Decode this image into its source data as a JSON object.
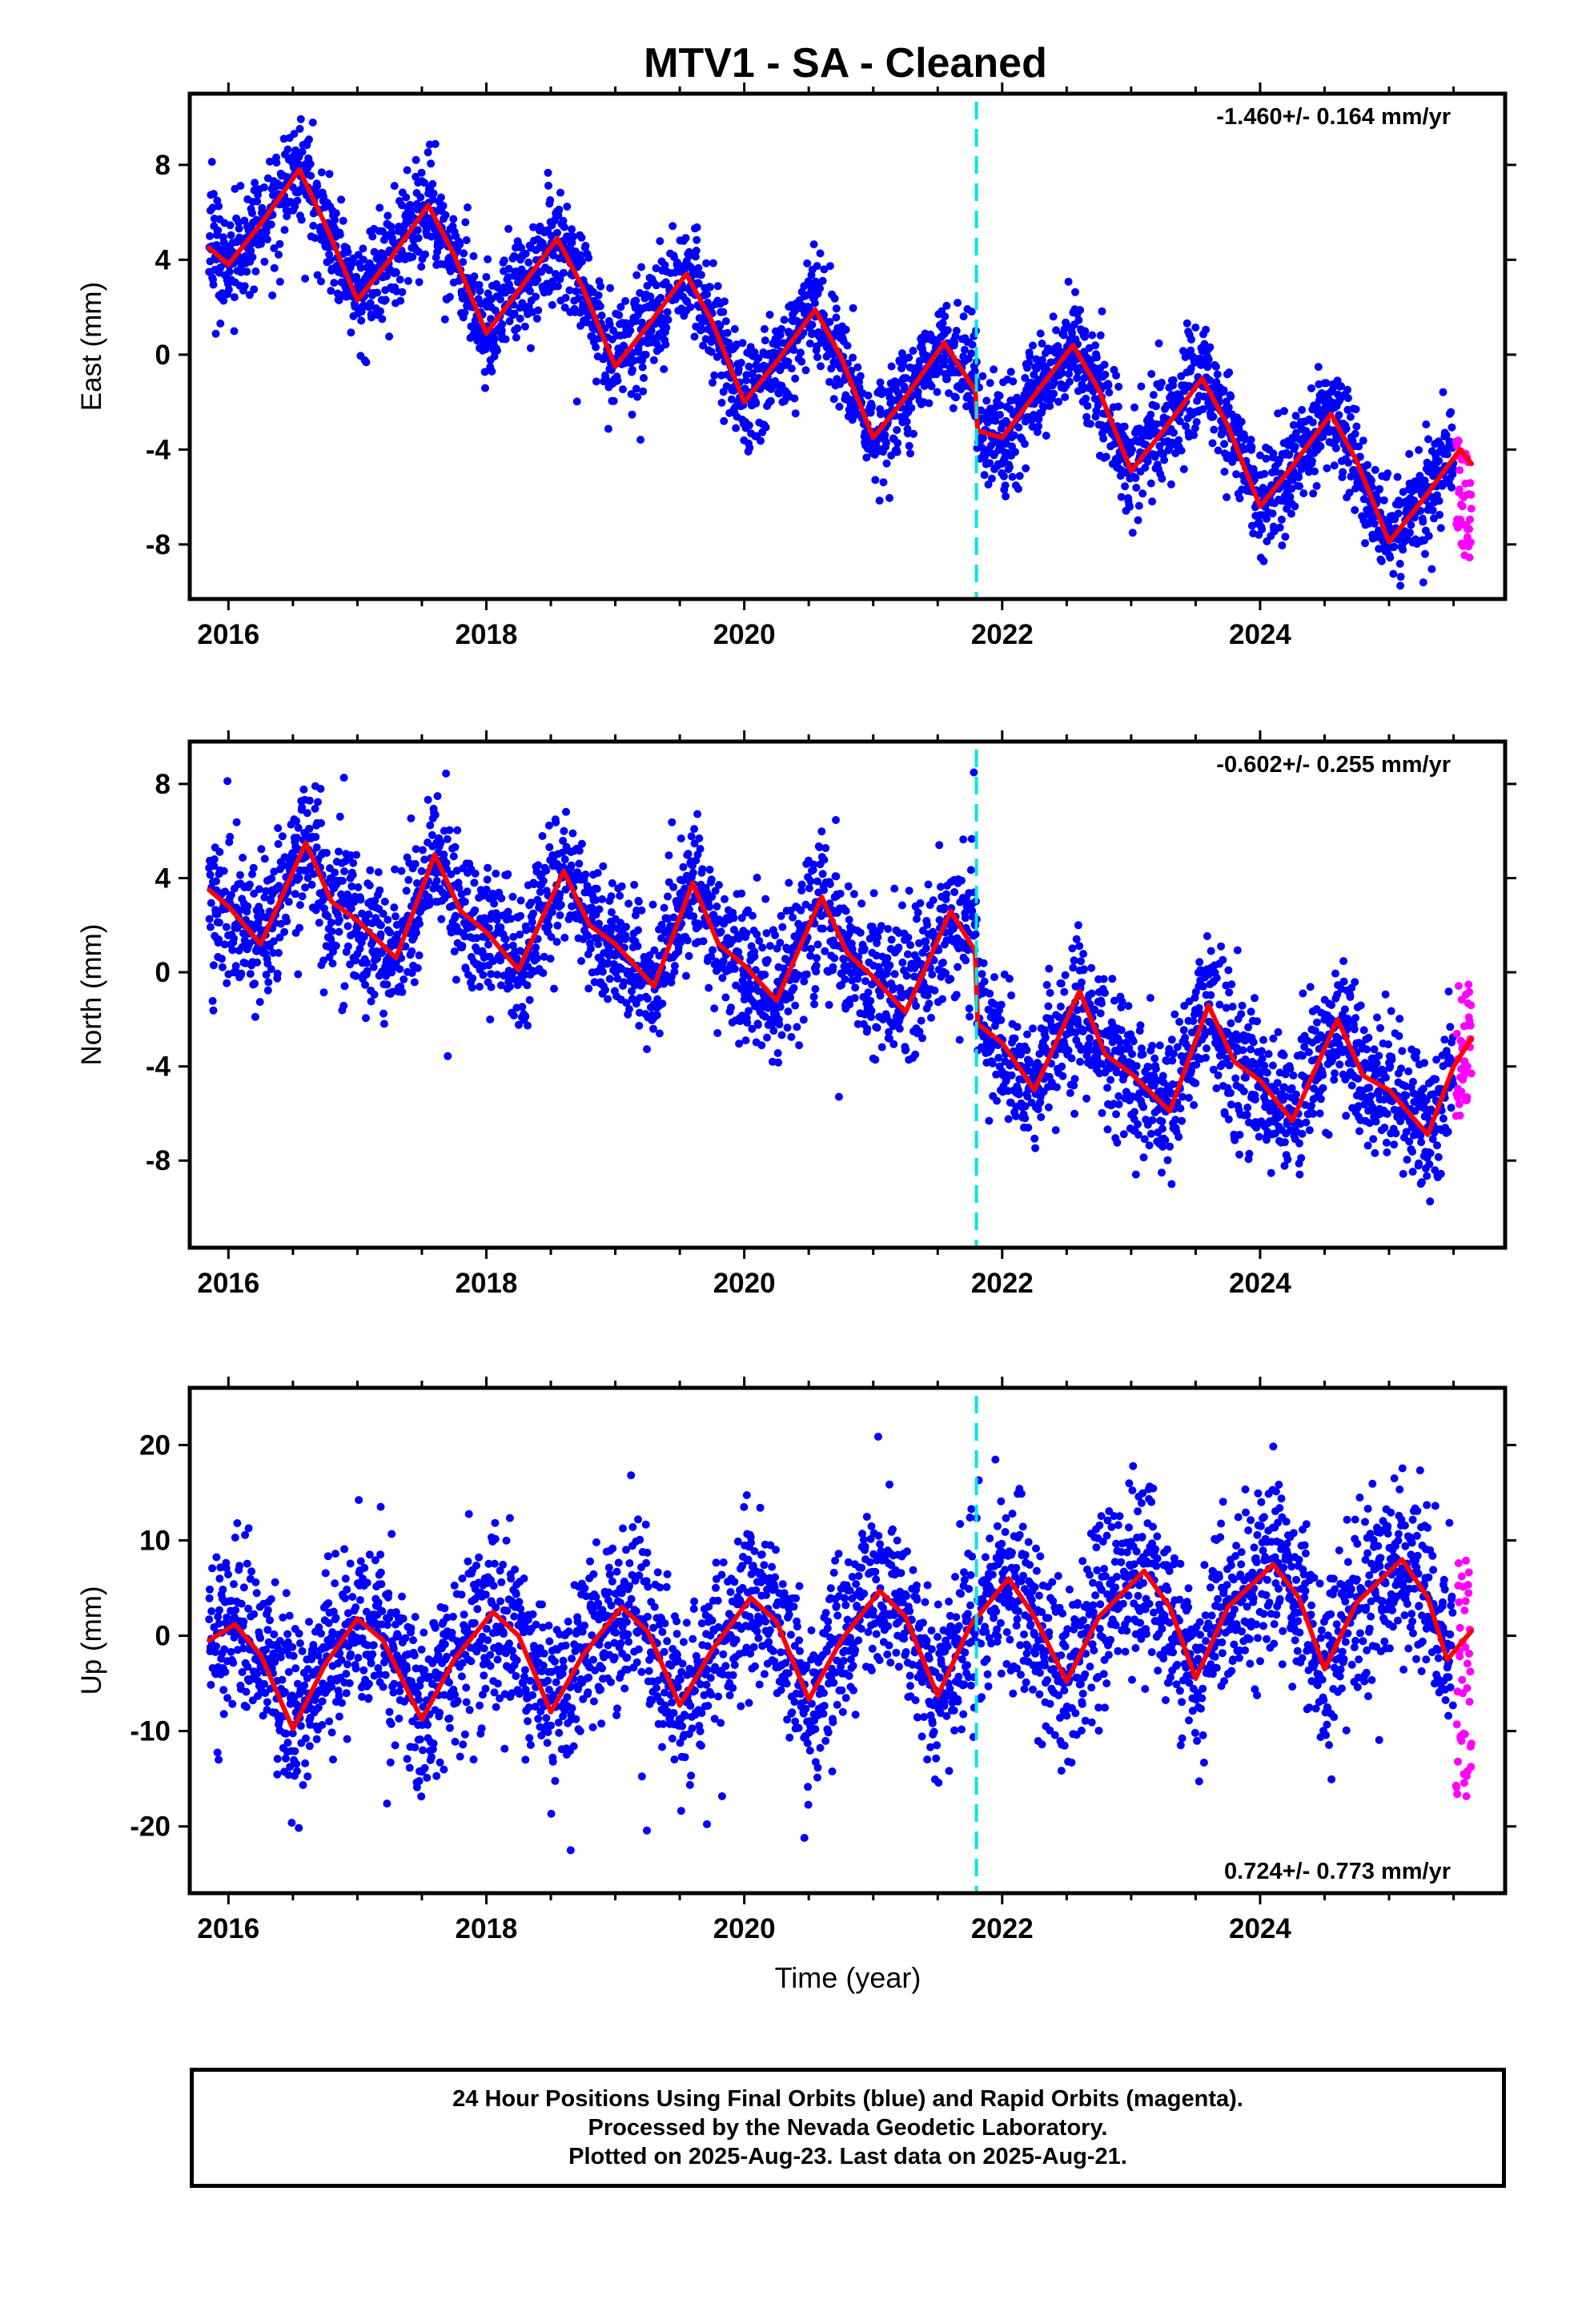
{
  "title": "MTV1  - SA - Cleaned",
  "colors": {
    "final_orbits": "#0000ff",
    "rapid_orbits": "#ff00ff",
    "model_fit": "#ff0000",
    "offset_marker": "#00e5e5"
  },
  "offset_marker_year": 2021.8,
  "xlabel": "Time (year)",
  "footer": {
    "line1": "24 Hour Positions Using Final Orbits (blue) and Rapid Orbits (magenta).",
    "line2": "Processed by the Nevada Geodetic Laboratory.",
    "line3": "Plotted on 2025-Aug-23. Last data on 2025-Aug-21."
  },
  "chart_data": [
    {
      "type": "scatter",
      "component": "east",
      "ylabel": "East (mm)",
      "rate_label": "-1.460+/- 0.164 mm/yr",
      "rate_position": "top-right",
      "xlim": [
        2015.7,
        2025.9
      ],
      "ylim": [
        -10.3,
        11.0
      ],
      "xticks": [
        2016,
        2018,
        2020,
        2022,
        2024
      ],
      "yticks": [
        8,
        4,
        0,
        -4,
        -8
      ],
      "series": [
        {
          "style": "points",
          "color": "#0000ff",
          "x_range": [
            2015.85,
            2025.5
          ],
          "scatter_sd": 1.1,
          "jump_year": 2021.8,
          "jump": -1.2
        },
        {
          "style": "points",
          "color": "#ff00ff",
          "x_range": [
            2025.52,
            2025.64
          ],
          "y_range": [
            -8.6,
            -3.4
          ]
        },
        {
          "style": "line",
          "color": "#ff0000",
          "x": [
            2015.85,
            2016.0,
            2016.25,
            2016.55,
            2016.75,
            2017.0,
            2017.25,
            2017.55,
            2017.75,
            2018.0,
            2018.25,
            2018.55,
            2018.75,
            2019.0,
            2019.25,
            2019.55,
            2019.75,
            2020.0,
            2020.25,
            2020.55,
            2020.75,
            2021.0,
            2021.25,
            2021.55,
            2021.79,
            2021.81,
            2022.0,
            2022.25,
            2022.55,
            2022.75,
            2023.0,
            2023.25,
            2023.55,
            2023.75,
            2024.0,
            2024.25,
            2024.55,
            2024.75,
            2025.0,
            2025.25,
            2025.55,
            2025.64
          ],
          "y": [
            4.5,
            3.8,
            5.5,
            7.8,
            5.5,
            2.3,
            4.0,
            6.3,
            4.2,
            0.9,
            2.7,
            4.9,
            2.8,
            -0.5,
            1.2,
            3.4,
            1.4,
            -2.0,
            -0.3,
            1.9,
            -0.1,
            -3.5,
            -1.8,
            0.5,
            -1.5,
            -3.2,
            -3.5,
            -1.7,
            0.4,
            -1.5,
            -4.9,
            -3.2,
            -1.0,
            -3.0,
            -6.4,
            -4.7,
            -2.5,
            -4.5,
            -7.9,
            -6.2,
            -4.0,
            -4.6
          ]
        }
      ]
    },
    {
      "type": "scatter",
      "component": "north",
      "ylabel": "North (mm)",
      "rate_label": "-0.602+/- 0.255 mm/yr",
      "rate_position": "top-right",
      "xlim": [
        2015.7,
        2025.9
      ],
      "ylim": [
        -11.7,
        9.8
      ],
      "xticks": [
        2016,
        2018,
        2020,
        2022,
        2024
      ],
      "yticks": [
        8,
        4,
        0,
        -4,
        -8
      ],
      "series": [
        {
          "style": "points",
          "color": "#0000ff",
          "x_range": [
            2015.85,
            2025.5
          ],
          "scatter_sd": 1.5,
          "jump_year": 2021.8,
          "jump": -2.3
        },
        {
          "style": "points",
          "color": "#ff00ff",
          "x_range": [
            2025.52,
            2025.64
          ],
          "y_range": [
            -6.1,
            -0.4
          ]
        },
        {
          "style": "line",
          "color": "#ff0000",
          "x": [
            2015.85,
            2016.0,
            2016.25,
            2016.6,
            2016.8,
            2017.0,
            2017.3,
            2017.6,
            2017.8,
            2018.0,
            2018.25,
            2018.6,
            2018.8,
            2019.0,
            2019.3,
            2019.6,
            2019.8,
            2020.0,
            2020.25,
            2020.6,
            2020.8,
            2021.0,
            2021.25,
            2021.6,
            2021.79,
            2021.81,
            2022.0,
            2022.25,
            2022.6,
            2022.8,
            2023.0,
            2023.3,
            2023.6,
            2023.8,
            2024.0,
            2024.25,
            2024.6,
            2024.8,
            2025.0,
            2025.3,
            2025.5,
            2025.64
          ],
          "y": [
            3.5,
            2.8,
            1.2,
            5.5,
            3.0,
            2.2,
            0.6,
            5.0,
            2.6,
            1.7,
            0.1,
            4.3,
            2.0,
            1.2,
            -0.6,
            3.8,
            1.2,
            0.3,
            -1.2,
            3.2,
            0.8,
            -0.2,
            -1.7,
            2.6,
            0.9,
            -2.2,
            -3.0,
            -5.0,
            -0.8,
            -3.5,
            -4.3,
            -5.9,
            -1.4,
            -3.8,
            -4.6,
            -6.3,
            -2.0,
            -4.4,
            -5.0,
            -6.9,
            -4.0,
            -2.8
          ]
        }
      ]
    },
    {
      "type": "scatter",
      "component": "up",
      "ylabel": "Up (mm)",
      "rate_label": "0.724+/- 0.773 mm/yr",
      "rate_position": "bottom-right",
      "xlim": [
        2015.7,
        2025.9
      ],
      "ylim": [
        -27.0,
        26.0
      ],
      "xticks": [
        2016,
        2018,
        2020,
        2022,
        2024
      ],
      "yticks": [
        20,
        10,
        0,
        -10,
        -20
      ],
      "series": [
        {
          "style": "points",
          "color": "#0000ff",
          "x_range": [
            2015.85,
            2025.5
          ],
          "scatter_sd": 4.5,
          "jump_year": 2021.8,
          "jump": 0
        },
        {
          "style": "points",
          "color": "#ff00ff",
          "x_range": [
            2025.52,
            2025.64
          ],
          "y_range": [
            -17.0,
            8.0
          ]
        },
        {
          "style": "line",
          "color": "#ff0000",
          "x": [
            2015.85,
            2016.05,
            2016.25,
            2016.5,
            2016.75,
            2017.0,
            2017.2,
            2017.5,
            2017.75,
            2018.05,
            2018.25,
            2018.5,
            2018.75,
            2019.05,
            2019.25,
            2019.5,
            2019.75,
            2020.05,
            2020.25,
            2020.5,
            2020.75,
            2021.05,
            2021.25,
            2021.5,
            2021.75,
            2022.05,
            2022.25,
            2022.5,
            2022.75,
            2023.1,
            2023.3,
            2023.5,
            2023.75,
            2024.1,
            2024.3,
            2024.5,
            2024.75,
            2025.1,
            2025.3,
            2025.45,
            2025.64
          ],
          "y": [
            -0.5,
            1.2,
            -2.0,
            -9.8,
            -3.0,
            1.8,
            -0.5,
            -8.8,
            -2.5,
            2.5,
            0.0,
            -8.0,
            -2.0,
            3.0,
            0.5,
            -7.3,
            -1.5,
            4.0,
            1.5,
            -6.7,
            -0.5,
            4.7,
            2.0,
            -6.3,
            1.0,
            6.0,
            2.0,
            -4.8,
            2.0,
            6.8,
            3.0,
            -4.5,
            3.0,
            7.5,
            4.0,
            -3.5,
            3.5,
            8.0,
            4.0,
            -2.5,
            0.5
          ]
        }
      ]
    }
  ]
}
